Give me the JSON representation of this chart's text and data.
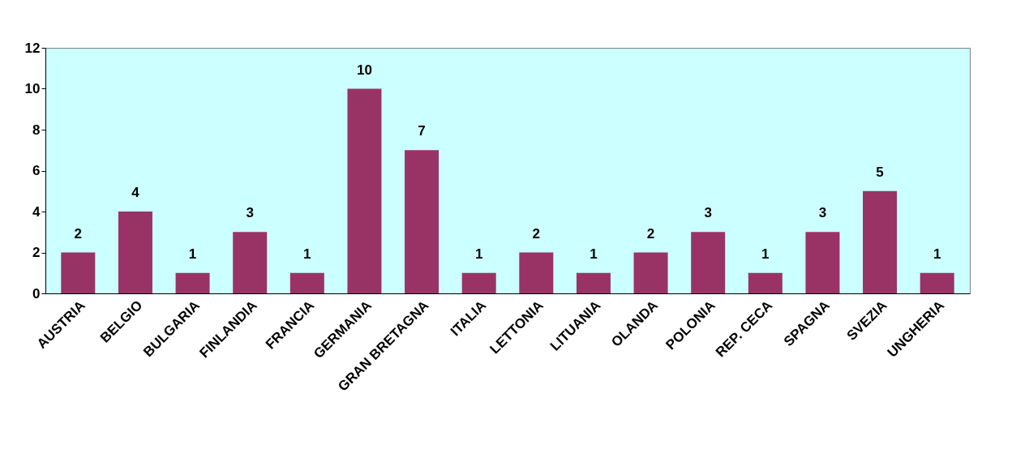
{
  "chart_data": {
    "type": "bar",
    "categories": [
      "AUSTRIA",
      "BELGIO",
      "BULGARIA",
      "FINLANDIA",
      "FRANCIA",
      "GERMANIA",
      "GRAN BRETAGNA",
      "ITALIA",
      "LETTONIA",
      "LITUANIA",
      "OLANDA",
      "POLONIA",
      "REP. CECA",
      "SPAGNA",
      "SVEZIA",
      "UNGHERIA"
    ],
    "values": [
      2,
      4,
      1,
      3,
      1,
      10,
      7,
      1,
      2,
      1,
      2,
      3,
      1,
      3,
      5,
      1
    ],
    "color": "#993366",
    "ylim": [
      0,
      12
    ],
    "yticks": [
      0,
      2,
      4,
      6,
      8,
      10,
      12
    ],
    "data_labels": true,
    "grid": false
  }
}
